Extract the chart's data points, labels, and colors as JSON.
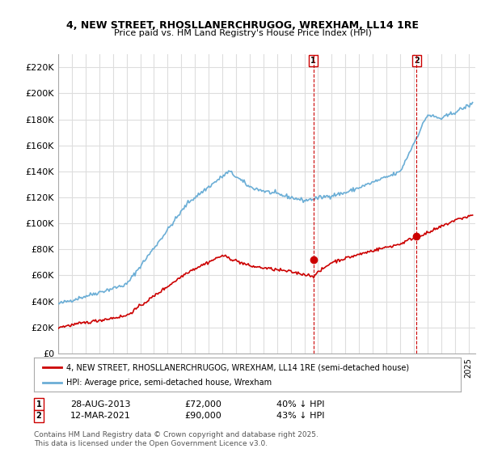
{
  "title": "4, NEW STREET, RHOSLLANERCHRUGOG, WREXHAM, LL14 1RE",
  "subtitle": "Price paid vs. HM Land Registry's House Price Index (HPI)",
  "ylabel_ticks": [
    "£0",
    "£20K",
    "£40K",
    "£60K",
    "£80K",
    "£100K",
    "£120K",
    "£140K",
    "£160K",
    "£180K",
    "£200K",
    "£220K"
  ],
  "ytick_vals": [
    0,
    20000,
    40000,
    60000,
    80000,
    100000,
    120000,
    140000,
    160000,
    180000,
    200000,
    220000
  ],
  "ylim": [
    0,
    230000
  ],
  "xlim_start": 1995.0,
  "xlim_end": 2025.5,
  "hpi_color": "#6baed6",
  "price_color": "#cc0000",
  "marker1_date": 2013.66,
  "marker1_price": 72000,
  "marker1_label": "28-AUG-2013",
  "marker1_amount": "£72,000",
  "marker1_pct": "40% ↓ HPI",
  "marker2_date": 2021.2,
  "marker2_price": 90000,
  "marker2_label": "12-MAR-2021",
  "marker2_amount": "£90,000",
  "marker2_pct": "43% ↓ HPI",
  "vline1_date": 2013.66,
  "vline2_date": 2021.2,
  "legend_line1": "4, NEW STREET, RHOSLLANERCHRUGOG, WREXHAM, LL14 1RE (semi-detached house)",
  "legend_line2": "HPI: Average price, semi-detached house, Wrexham",
  "footnote": "Contains HM Land Registry data © Crown copyright and database right 2025.\nThis data is licensed under the Open Government Licence v3.0.",
  "bg_color": "#ffffff",
  "grid_color": "#dddddd"
}
